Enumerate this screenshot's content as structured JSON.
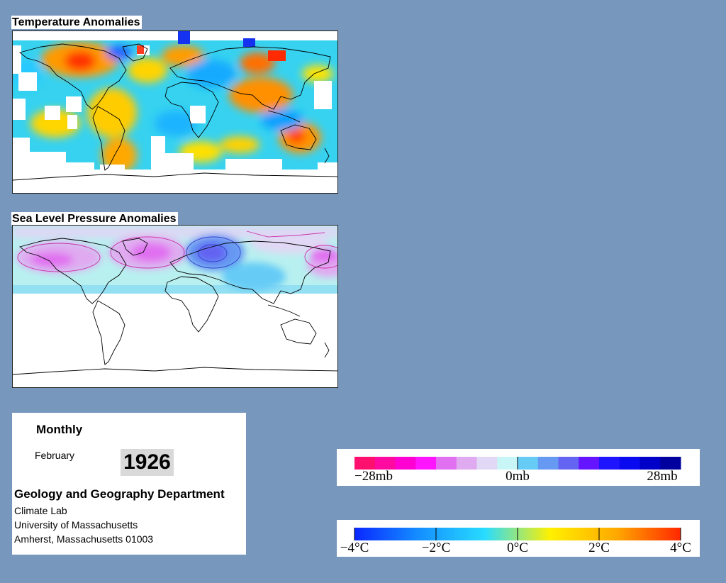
{
  "temperature_panel": {
    "title": "Temperature Anomalies",
    "missing_data_color": "#ffffff",
    "coastline_color": "#000000"
  },
  "pressure_panel": {
    "title": "Sea Level Pressure Anomalies",
    "coverage": "northern hemisphere only",
    "missing_data_color": "#ffffff",
    "contour_color": "#cc33aa"
  },
  "info": {
    "period": "Monthly",
    "month": "February",
    "year": "1926",
    "department": "Geology and Geography Department",
    "lab": "Climate Lab",
    "university": "University of Massachusetts",
    "address": "Amherst, Massachusetts 01003"
  },
  "pressure_legend": {
    "min_label": "−28mb",
    "mid_label": "0mb",
    "max_label": "28mb",
    "colors": [
      "#ff0f6e",
      "#ff0aa0",
      "#ff00d2",
      "#ff14ff",
      "#e070f0",
      "#e0aaf0",
      "#e0d8f4",
      "#c8f6f6",
      "#66ccf6",
      "#6699f2",
      "#6464f2",
      "#6414ff",
      "#1e14ff",
      "#0a0af0",
      "#0000c8",
      "#00009e"
    ]
  },
  "temperature_legend": {
    "labels": [
      "−4°C",
      "−2°C",
      "0°C",
      "2°C",
      "4°C"
    ],
    "gradient": [
      "#0a28ff",
      "#1490ff",
      "#28dcff",
      "#fff000",
      "#ffaa00",
      "#ff2800"
    ]
  }
}
